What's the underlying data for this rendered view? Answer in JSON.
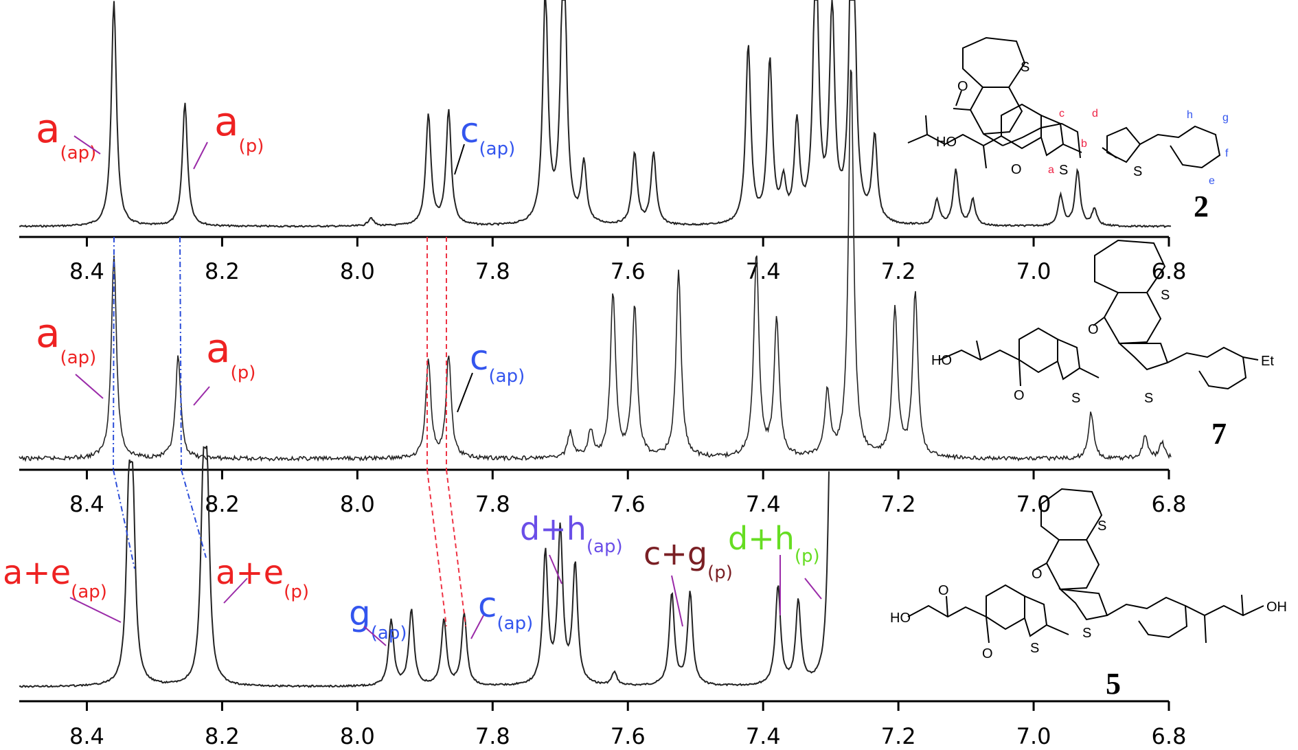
{
  "chart_data": [
    {
      "type": "line",
      "panel": "top",
      "compound": "2",
      "x_axis": {
        "range": [
          8.5,
          6.8
        ],
        "reversed": true,
        "ticks": [
          "8.4",
          "8.2",
          "8.0",
          "7.8",
          "7.6",
          "7.4",
          "7.2",
          "7.0",
          "6.8"
        ]
      },
      "peaks": [
        {
          "x": 8.36,
          "h": 0.53
        },
        {
          "x": 8.255,
          "h": 0.29
        },
        {
          "x": 7.98,
          "h": 0.02
        },
        {
          "x": 7.895,
          "h": 0.26
        },
        {
          "x": 7.865,
          "h": 0.27
        },
        {
          "x": 7.722,
          "h": 0.55
        },
        {
          "x": 7.695,
          "h": 0.75
        },
        {
          "x": 7.665,
          "h": 0.14
        },
        {
          "x": 7.59,
          "h": 0.17
        },
        {
          "x": 7.562,
          "h": 0.17
        },
        {
          "x": 7.422,
          "h": 0.42
        },
        {
          "x": 7.39,
          "h": 0.38
        },
        {
          "x": 7.37,
          "h": 0.09
        },
        {
          "x": 7.35,
          "h": 0.23
        },
        {
          "x": 7.322,
          "h": 0.68
        },
        {
          "x": 7.298,
          "h": 0.5
        },
        {
          "x": 7.268,
          "h": 0.95
        },
        {
          "x": 7.235,
          "h": 0.2
        },
        {
          "x": 7.143,
          "h": 0.06
        },
        {
          "x": 7.115,
          "h": 0.13
        },
        {
          "x": 7.09,
          "h": 0.06
        },
        {
          "x": 6.96,
          "h": 0.07
        },
        {
          "x": 6.935,
          "h": 0.13
        },
        {
          "x": 6.91,
          "h": 0.04
        }
      ],
      "annotations": [
        {
          "main": "a",
          "sub": "(ap)",
          "color": "#ee2222"
        },
        {
          "main": "a",
          "sub": "(p)",
          "color": "#ee2222"
        },
        {
          "main": "c",
          "sub": "(ap)",
          "color": "#3355ee"
        }
      ]
    },
    {
      "type": "line",
      "panel": "middle",
      "compound": "7",
      "x_axis": {
        "range": [
          8.5,
          6.8
        ],
        "reversed": true,
        "ticks": [
          "8.4",
          "8.2",
          "8.0",
          "7.8",
          "7.6",
          "7.4",
          "7.2",
          "7.0",
          "6.8"
        ]
      },
      "peaks": [
        {
          "x": 8.36,
          "h": 0.62
        },
        {
          "x": 8.265,
          "h": 0.31
        },
        {
          "x": 7.895,
          "h": 0.3
        },
        {
          "x": 7.865,
          "h": 0.31
        },
        {
          "x": 7.685,
          "h": 0.08
        },
        {
          "x": 7.655,
          "h": 0.08
        },
        {
          "x": 7.622,
          "h": 0.5
        },
        {
          "x": 7.59,
          "h": 0.46
        },
        {
          "x": 7.525,
          "h": 0.57
        },
        {
          "x": 7.41,
          "h": 0.62
        },
        {
          "x": 7.38,
          "h": 0.42
        },
        {
          "x": 7.305,
          "h": 0.2
        },
        {
          "x": 7.27,
          "h": 1.2
        },
        {
          "x": 7.205,
          "h": 0.45
        },
        {
          "x": 7.175,
          "h": 0.5
        },
        {
          "x": 6.915,
          "h": 0.14
        },
        {
          "x": 6.835,
          "h": 0.07
        },
        {
          "x": 6.81,
          "h": 0.05
        }
      ],
      "annotations": [
        {
          "main": "a",
          "sub": "(ap)",
          "color": "#ee2222"
        },
        {
          "main": "a",
          "sub": "(p)",
          "color": "#ee2222"
        },
        {
          "main": "c",
          "sub": "(ap)",
          "color": "#3355ee"
        }
      ]
    },
    {
      "type": "line",
      "panel": "bottom",
      "compound": "5",
      "x_axis": {
        "range": [
          8.5,
          6.8
        ],
        "reversed": true,
        "ticks": [
          "8.4",
          "8.2",
          "8.0",
          "7.8",
          "7.6",
          "7.4",
          "7.2",
          "7.0",
          "6.8"
        ]
      },
      "peaks": [
        {
          "x": 8.338,
          "h": 0.49
        },
        {
          "x": 8.332,
          "h": 0.49
        },
        {
          "x": 8.228,
          "h": 0.52
        },
        {
          "x": 8.222,
          "h": 0.52
        },
        {
          "x": 7.95,
          "h": 0.2
        },
        {
          "x": 7.92,
          "h": 0.23
        },
        {
          "x": 7.872,
          "h": 0.2
        },
        {
          "x": 7.842,
          "h": 0.22
        },
        {
          "x": 7.722,
          "h": 0.4
        },
        {
          "x": 7.7,
          "h": 0.47
        },
        {
          "x": 7.678,
          "h": 0.36
        },
        {
          "x": 7.62,
          "h": 0.04
        },
        {
          "x": 7.535,
          "h": 0.28
        },
        {
          "x": 7.508,
          "h": 0.28
        },
        {
          "x": 7.378,
          "h": 0.3
        },
        {
          "x": 7.348,
          "h": 0.25
        },
        {
          "x": 7.3,
          "h": 0.85
        },
        {
          "x": 7.27,
          "h": 1.3
        }
      ],
      "annotations": [
        {
          "main": "a+e",
          "sub": "(ap)",
          "color": "#ee2222"
        },
        {
          "main": "a+e",
          "sub": "(p)",
          "color": "#ee2222"
        },
        {
          "main": "g",
          "sub": "(ap)",
          "color": "#3355ee"
        },
        {
          "main": "c",
          "sub": "(ap)",
          "color": "#3355ee"
        },
        {
          "main": "d+h",
          "sub": "(ap)",
          "color": "#6a4ee8"
        },
        {
          "main": "c+g",
          "sub": "(p)",
          "color": "#7a1f24"
        },
        {
          "main": "d+h",
          "sub": "(p)",
          "color": "#66dd22"
        }
      ]
    }
  ],
  "structures": {
    "compound_2": {
      "number": "2",
      "groups": [
        "HO",
        "O",
        "O",
        "S",
        "S",
        "S"
      ],
      "atom_labels": [
        "a",
        "b",
        "c",
        "d",
        "e",
        "f",
        "g",
        "h"
      ]
    },
    "compound_7": {
      "number": "7",
      "groups": [
        "HO",
        "O",
        "O",
        "S",
        "S",
        "S",
        "Et"
      ]
    },
    "compound_5": {
      "number": "5",
      "groups": [
        "HO",
        "OH",
        "O",
        "O",
        "O",
        "S",
        "S",
        "S"
      ]
    }
  },
  "colors": {
    "spectrum": "#222222",
    "blue_guide": "#2a4cd8",
    "red_guide": "#ee3344",
    "label_red": "#ee2222",
    "label_blue": "#3355ee",
    "label_purple": "#6a4ee8",
    "label_brown": "#7a1f24",
    "label_green": "#66dd22",
    "leader": "#9a2aa8",
    "atom_red": "#ee2244",
    "atom_blue": "#3355ee"
  }
}
